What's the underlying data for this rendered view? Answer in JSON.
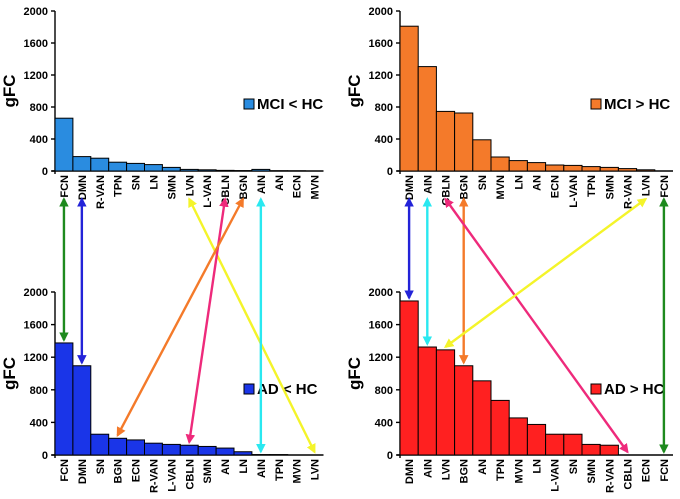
{
  "chart_data": [
    {
      "id": "mci-lt-hc",
      "type": "bar",
      "ylabel": "gFC",
      "ylim": [
        0,
        2000
      ],
      "yticks": [
        0,
        400,
        800,
        1200,
        1600,
        2000
      ],
      "label_position": "below",
      "legend": {
        "label": "MCI < HC",
        "color": "#2a8ce0",
        "placement": "right"
      },
      "bar_color": "#2a8ce0",
      "categories": [
        "FCN",
        "DMN",
        "R-VAN",
        "TPN",
        "SN",
        "LN",
        "SMN",
        "LVN",
        "L-VAN",
        "CBLN",
        "BGN",
        "AIN",
        "AN",
        "ECN",
        "MVN"
      ],
      "values": [
        660,
        180,
        160,
        110,
        95,
        80,
        45,
        20,
        15,
        8,
        5,
        20,
        3,
        2,
        0
      ]
    },
    {
      "id": "mci-gt-hc",
      "type": "bar",
      "ylabel": "gFC",
      "ylim": [
        0,
        2000
      ],
      "yticks": [
        0,
        400,
        800,
        1200,
        1600,
        2000
      ],
      "label_position": "below",
      "legend": {
        "label": "MCI > HC",
        "color": "#f47a2a",
        "placement": "right"
      },
      "bar_color": "#f47a2a",
      "categories": [
        "DMN",
        "AIN",
        "CBLN",
        "BGN",
        "SN",
        "MVN",
        "LN",
        "AN",
        "ECN",
        "L-VAN",
        "TPN",
        "SMN",
        "R-VAN",
        "LVN",
        "FCN"
      ],
      "values": [
        1810,
        1305,
        745,
        725,
        390,
        175,
        130,
        105,
        75,
        70,
        55,
        45,
        30,
        15,
        0
      ]
    },
    {
      "id": "ad-lt-hc",
      "type": "bar",
      "ylabel": "gFC",
      "ylim": [
        0,
        2000
      ],
      "yticks": [
        0,
        400,
        800,
        1200,
        1600,
        2000
      ],
      "label_position": "below",
      "legend": {
        "label": "AD < HC",
        "color": "#1a35e8",
        "placement": "right"
      },
      "bar_color": "#1a35e8",
      "categories": [
        "FCN",
        "DMN",
        "SN",
        "BGN",
        "ECN",
        "R-VAN",
        "L-VAN",
        "CBLN",
        "SMN",
        "AN",
        "LN",
        "AIN",
        "TPN",
        "MVN",
        "LVN"
      ],
      "values": [
        1375,
        1095,
        255,
        205,
        185,
        145,
        130,
        120,
        105,
        85,
        40,
        5,
        5,
        0,
        0
      ]
    },
    {
      "id": "ad-gt-hc",
      "type": "bar",
      "ylabel": "gFC",
      "ylim": [
        0,
        2000
      ],
      "yticks": [
        0,
        400,
        800,
        1200,
        1600,
        2000
      ],
      "label_position": "below",
      "legend": {
        "label": "AD > HC",
        "color": "#ff2020",
        "placement": "right"
      },
      "bar_color": "#ff2020",
      "categories": [
        "DMN",
        "AIN",
        "LVN",
        "BGN",
        "AN",
        "TPN",
        "MVN",
        "LN",
        "L-VAN",
        "SN",
        "SMN",
        "R-VAN",
        "CBLN",
        "ECN",
        "FCN"
      ],
      "values": [
        1890,
        1325,
        1290,
        1095,
        910,
        670,
        455,
        375,
        255,
        255,
        130,
        120,
        0,
        0,
        0
      ]
    }
  ],
  "connections": [
    {
      "network": "FCN",
      "color": "#1e8a1e",
      "from": "mci-lt-hc",
      "to": "ad-lt-hc"
    },
    {
      "network": "DMN",
      "color": "#2323d8",
      "from": "mci-lt-hc",
      "to": "ad-lt-hc"
    },
    {
      "network": "LVN",
      "color": "#f4f42a",
      "from": "mci-lt-hc",
      "to": "ad-lt-hc"
    },
    {
      "network": "CBLN",
      "color": "#ee2a7b",
      "from": "mci-lt-hc",
      "to": "ad-lt-hc"
    },
    {
      "network": "BGN",
      "color": "#f47a2a",
      "from": "mci-lt-hc",
      "to": "ad-lt-hc"
    },
    {
      "network": "AIN",
      "color": "#2ae8f0",
      "from": "mci-lt-hc",
      "to": "ad-lt-hc"
    },
    {
      "network": "DMN",
      "color": "#2323d8",
      "from": "mci-gt-hc",
      "to": "ad-gt-hc"
    },
    {
      "network": "AIN",
      "color": "#2ae8f0",
      "from": "mci-gt-hc",
      "to": "ad-gt-hc"
    },
    {
      "network": "BGN",
      "color": "#f47a2a",
      "from": "mci-gt-hc",
      "to": "ad-gt-hc"
    },
    {
      "network": "CBLN",
      "color": "#ee2a7b",
      "from": "mci-gt-hc",
      "to": "ad-gt-hc"
    },
    {
      "network": "LVN",
      "color": "#f4f42a",
      "from": "mci-gt-hc",
      "to": "ad-gt-hc"
    },
    {
      "network": "FCN",
      "color": "#1e8a1e",
      "from": "mci-gt-hc",
      "to": "ad-gt-hc"
    }
  ]
}
